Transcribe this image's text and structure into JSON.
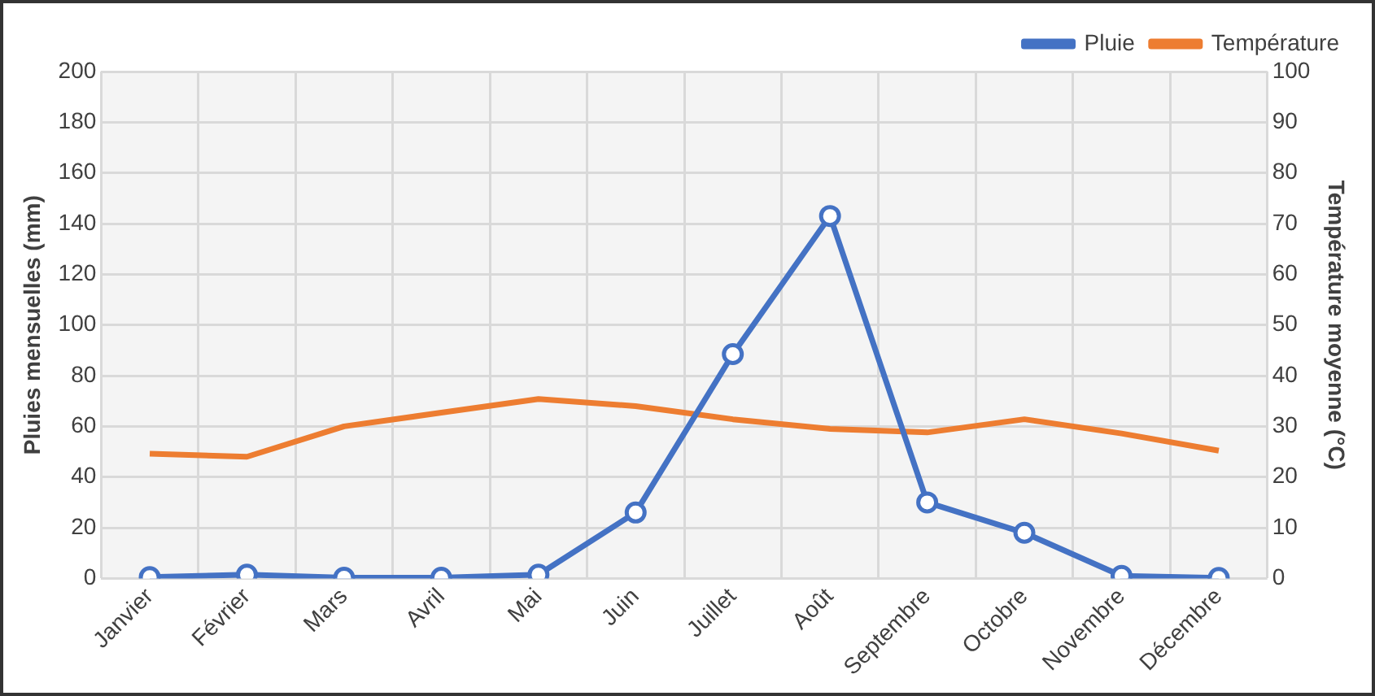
{
  "chart_data": {
    "type": "line",
    "categories": [
      "Janvier",
      "Février",
      "Mars",
      "Avril",
      "Mai",
      "Juin",
      "Juillet",
      "Août",
      "Septembre",
      "Octobre",
      "Novembre",
      "Décembre"
    ],
    "ylabel": "Pluies mensuelles (mm)",
    "y2label": "Température moyenne (°C)",
    "series": [
      {
        "name": "Pluie",
        "color": "#4472c4",
        "marker": "circle",
        "values": [
          0.5,
          1.5,
          0.3,
          0.3,
          1.5,
          26,
          88.5,
          143,
          30,
          18,
          1,
          0.2
        ]
      },
      {
        "name": "Température",
        "color": "#ed7d31",
        "axis": "y2",
        "marker": "none",
        "values": [
          24.6,
          24,
          30,
          32.7,
          35.4,
          34,
          31.4,
          29.5,
          28.8,
          31.4,
          28.6,
          25.2
        ]
      }
    ],
    "ylim": [
      0,
      200
    ],
    "yticks": [
      0,
      20,
      40,
      60,
      80,
      100,
      120,
      140,
      160,
      180,
      200
    ],
    "y2lim": [
      0,
      100
    ],
    "y2ticks": [
      0,
      10,
      20,
      30,
      40,
      50,
      60,
      70,
      80,
      90,
      100
    ],
    "grid": true,
    "legend": "top right"
  }
}
